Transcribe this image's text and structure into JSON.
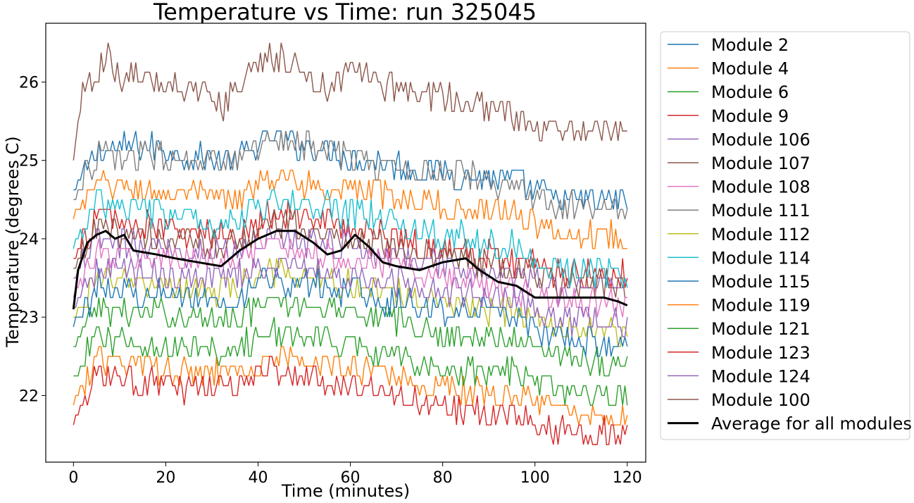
{
  "chart_data": {
    "type": "line",
    "title": "Temperature vs Time: run 325045",
    "xlabel": "Time (minutes)",
    "ylabel": "Temperature (degrees C)",
    "xlim": [
      -6,
      124
    ],
    "ylim": [
      21.15,
      26.75
    ],
    "xticks": [
      0,
      20,
      40,
      60,
      80,
      100,
      120
    ],
    "yticks": [
      22,
      23,
      24,
      25,
      26
    ],
    "grid": false,
    "legend_position": "outside-right",
    "series": [
      {
        "name": "Module 2",
        "color": "#1f77b4",
        "base": 25.05,
        "amp": 0.13,
        "pts": [
          [
            0,
            24.6
          ],
          [
            5,
            25.1
          ],
          [
            15,
            25.2
          ],
          [
            25,
            25.05
          ],
          [
            35,
            25.0
          ],
          [
            43,
            25.3
          ],
          [
            55,
            25.1
          ],
          [
            65,
            25.0
          ],
          [
            80,
            24.85
          ],
          [
            95,
            24.75
          ],
          [
            105,
            24.5
          ],
          [
            120,
            24.5
          ]
        ]
      },
      {
        "name": "Module 4",
        "color": "#ff7f0e",
        "base": 24.7,
        "amp": 0.12,
        "pts": [
          [
            0,
            24.3
          ],
          [
            5,
            24.7
          ],
          [
            15,
            24.6
          ],
          [
            25,
            24.55
          ],
          [
            35,
            24.5
          ],
          [
            43,
            24.8
          ],
          [
            55,
            24.65
          ],
          [
            65,
            24.6
          ],
          [
            80,
            24.4
          ],
          [
            95,
            24.35
          ],
          [
            105,
            24.05
          ],
          [
            120,
            24.05
          ]
        ]
      },
      {
        "name": "Module 6",
        "color": "#2ca02c",
        "base": 23.1,
        "amp": 0.12,
        "pts": [
          [
            0,
            22.6
          ],
          [
            5,
            23.1
          ],
          [
            15,
            23.05
          ],
          [
            25,
            23.0
          ],
          [
            35,
            23.0
          ],
          [
            43,
            23.2
          ],
          [
            55,
            23.15
          ],
          [
            65,
            23.05
          ],
          [
            80,
            22.75
          ],
          [
            95,
            22.7
          ],
          [
            105,
            22.55
          ],
          [
            120,
            22.35
          ]
        ]
      },
      {
        "name": "Module 9",
        "color": "#d62728",
        "base": 24.2,
        "amp": 0.14,
        "pts": [
          [
            0,
            23.7
          ],
          [
            5,
            24.3
          ],
          [
            15,
            24.15
          ],
          [
            25,
            24.05
          ],
          [
            35,
            24.05
          ],
          [
            43,
            24.35
          ],
          [
            55,
            24.2
          ],
          [
            65,
            24.05
          ],
          [
            80,
            23.85
          ],
          [
            95,
            23.75
          ],
          [
            105,
            23.6
          ],
          [
            120,
            23.55
          ]
        ]
      },
      {
        "name": "Module 106",
        "color": "#9467bd",
        "base": 24.0,
        "amp": 0.13,
        "pts": [
          [
            0,
            23.5
          ],
          [
            5,
            23.95
          ],
          [
            15,
            23.9
          ],
          [
            25,
            23.85
          ],
          [
            35,
            23.85
          ],
          [
            43,
            24.05
          ],
          [
            55,
            23.95
          ],
          [
            65,
            23.85
          ],
          [
            80,
            23.65
          ],
          [
            95,
            23.55
          ],
          [
            105,
            23.35
          ],
          [
            120,
            23.45
          ]
        ]
      },
      {
        "name": "Module 107",
        "color": "#8c564b",
        "base": 24.1,
        "amp": 0.14,
        "pts": [
          [
            0,
            23.6
          ],
          [
            5,
            24.1
          ],
          [
            15,
            24.05
          ],
          [
            25,
            23.95
          ],
          [
            35,
            23.95
          ],
          [
            43,
            24.2
          ],
          [
            55,
            24.05
          ],
          [
            65,
            23.95
          ],
          [
            80,
            23.8
          ],
          [
            95,
            23.65
          ],
          [
            105,
            23.45
          ],
          [
            120,
            23.4
          ]
        ]
      },
      {
        "name": "Module 108",
        "color": "#e377c2",
        "base": 23.8,
        "amp": 0.13,
        "pts": [
          [
            0,
            23.3
          ],
          [
            5,
            23.8
          ],
          [
            15,
            23.75
          ],
          [
            25,
            23.7
          ],
          [
            35,
            23.7
          ],
          [
            43,
            23.9
          ],
          [
            55,
            23.8
          ],
          [
            65,
            23.7
          ],
          [
            80,
            23.55
          ],
          [
            95,
            23.35
          ],
          [
            105,
            23.2
          ],
          [
            120,
            23.2
          ]
        ]
      },
      {
        "name": "Module 111",
        "color": "#7f7f7f",
        "base": 25.0,
        "amp": 0.13,
        "pts": [
          [
            0,
            24.5
          ],
          [
            5,
            25.05
          ],
          [
            15,
            25.05
          ],
          [
            25,
            24.95
          ],
          [
            35,
            24.95
          ],
          [
            43,
            25.3
          ],
          [
            55,
            25.15
          ],
          [
            65,
            24.95
          ],
          [
            80,
            24.85
          ],
          [
            95,
            24.7
          ],
          [
            105,
            24.4
          ],
          [
            120,
            24.35
          ]
        ]
      },
      {
        "name": "Module 112",
        "color": "#bcbd22",
        "base": 23.5,
        "amp": 0.13,
        "pts": [
          [
            0,
            23.0
          ],
          [
            5,
            23.5
          ],
          [
            15,
            23.4
          ],
          [
            25,
            23.35
          ],
          [
            35,
            23.35
          ],
          [
            43,
            23.6
          ],
          [
            55,
            23.5
          ],
          [
            65,
            23.35
          ],
          [
            80,
            23.2
          ],
          [
            95,
            23.05
          ],
          [
            105,
            22.9
          ],
          [
            120,
            22.8
          ]
        ]
      },
      {
        "name": "Module 114",
        "color": "#17becf",
        "base": 24.4,
        "amp": 0.14,
        "pts": [
          [
            0,
            23.9
          ],
          [
            5,
            24.45
          ],
          [
            15,
            24.35
          ],
          [
            25,
            24.25
          ],
          [
            35,
            24.25
          ],
          [
            43,
            24.5
          ],
          [
            55,
            24.4
          ],
          [
            65,
            24.25
          ],
          [
            80,
            24.05
          ],
          [
            95,
            23.9
          ],
          [
            105,
            23.6
          ],
          [
            120,
            23.55
          ]
        ]
      },
      {
        "name": "Module 115",
        "color": "#1f77b4",
        "base": 23.4,
        "amp": 0.14,
        "pts": [
          [
            0,
            22.9
          ],
          [
            5,
            23.4
          ],
          [
            15,
            23.3
          ],
          [
            25,
            23.25
          ],
          [
            35,
            23.25
          ],
          [
            43,
            23.5
          ],
          [
            55,
            23.4
          ],
          [
            65,
            23.25
          ],
          [
            80,
            23.1
          ],
          [
            95,
            23.0
          ],
          [
            105,
            22.75
          ],
          [
            120,
            22.55
          ]
        ]
      },
      {
        "name": "Module 119",
        "color": "#ff7f0e",
        "base": 22.4,
        "amp": 0.12,
        "pts": [
          [
            0,
            21.9
          ],
          [
            5,
            22.45
          ],
          [
            15,
            22.35
          ],
          [
            25,
            22.3
          ],
          [
            35,
            22.3
          ],
          [
            43,
            22.5
          ],
          [
            55,
            22.4
          ],
          [
            65,
            22.3
          ],
          [
            80,
            22.1
          ],
          [
            95,
            22.0
          ],
          [
            105,
            21.8
          ],
          [
            120,
            21.7
          ]
        ]
      },
      {
        "name": "Module 121",
        "color": "#2ca02c",
        "base": 22.7,
        "amp": 0.13,
        "pts": [
          [
            0,
            22.2
          ],
          [
            5,
            22.75
          ],
          [
            15,
            22.65
          ],
          [
            25,
            22.6
          ],
          [
            35,
            22.6
          ],
          [
            43,
            22.8
          ],
          [
            55,
            22.7
          ],
          [
            65,
            22.6
          ],
          [
            80,
            22.35
          ],
          [
            95,
            22.3
          ],
          [
            105,
            22.0
          ],
          [
            120,
            22.0
          ]
        ]
      },
      {
        "name": "Module 123",
        "color": "#d62728",
        "base": 22.2,
        "amp": 0.13,
        "pts": [
          [
            0,
            21.65
          ],
          [
            5,
            22.25
          ],
          [
            15,
            22.15
          ],
          [
            25,
            22.1
          ],
          [
            35,
            22.1
          ],
          [
            43,
            22.35
          ],
          [
            55,
            22.2
          ],
          [
            65,
            22.1
          ],
          [
            80,
            21.85
          ],
          [
            95,
            21.75
          ],
          [
            105,
            21.55
          ],
          [
            120,
            21.5
          ]
        ]
      },
      {
        "name": "Module 124",
        "color": "#9467bd",
        "base": 23.6,
        "amp": 0.13,
        "pts": [
          [
            0,
            23.1
          ],
          [
            5,
            23.65
          ],
          [
            15,
            23.55
          ],
          [
            25,
            23.5
          ],
          [
            35,
            23.5
          ],
          [
            43,
            23.7
          ],
          [
            55,
            23.6
          ],
          [
            65,
            23.5
          ],
          [
            80,
            23.35
          ],
          [
            95,
            23.2
          ],
          [
            105,
            23.0
          ],
          [
            120,
            22.9
          ]
        ]
      },
      {
        "name": "Module 100",
        "color": "#8c564b",
        "base": 26.1,
        "amp": 0.13,
        "pts": [
          [
            0,
            25.0
          ],
          [
            2,
            25.9
          ],
          [
            5,
            26.15
          ],
          [
            7,
            26.35
          ],
          [
            10,
            26.1
          ],
          [
            15,
            26.0
          ],
          [
            25,
            25.95
          ],
          [
            32,
            25.7
          ],
          [
            38,
            26.2
          ],
          [
            45,
            26.35
          ],
          [
            50,
            26.1
          ],
          [
            55,
            25.95
          ],
          [
            60,
            26.2
          ],
          [
            65,
            26.0
          ],
          [
            75,
            25.85
          ],
          [
            85,
            25.75
          ],
          [
            95,
            25.6
          ],
          [
            100,
            25.4
          ],
          [
            110,
            25.4
          ],
          [
            120,
            25.4
          ]
        ]
      },
      {
        "name": "Average for all modules",
        "color": "#000000",
        "average": true,
        "pts": [
          [
            0,
            23.1
          ],
          [
            1,
            23.6
          ],
          [
            3,
            23.95
          ],
          [
            5,
            24.05
          ],
          [
            7,
            24.1
          ],
          [
            9,
            24.0
          ],
          [
            11,
            24.05
          ],
          [
            13,
            23.85
          ],
          [
            18,
            23.8
          ],
          [
            22,
            23.75
          ],
          [
            27,
            23.7
          ],
          [
            32,
            23.65
          ],
          [
            36,
            23.85
          ],
          [
            40,
            24.0
          ],
          [
            44,
            24.1
          ],
          [
            48,
            24.1
          ],
          [
            52,
            23.95
          ],
          [
            55,
            23.8
          ],
          [
            58,
            23.85
          ],
          [
            61,
            24.05
          ],
          [
            64,
            23.9
          ],
          [
            67,
            23.7
          ],
          [
            70,
            23.65
          ],
          [
            75,
            23.6
          ],
          [
            80,
            23.7
          ],
          [
            85,
            23.75
          ],
          [
            88,
            23.6
          ],
          [
            92,
            23.45
          ],
          [
            96,
            23.4
          ],
          [
            100,
            23.25
          ],
          [
            105,
            23.25
          ],
          [
            110,
            23.25
          ],
          [
            115,
            23.25
          ],
          [
            118,
            23.2
          ],
          [
            120,
            23.15
          ]
        ]
      }
    ]
  }
}
